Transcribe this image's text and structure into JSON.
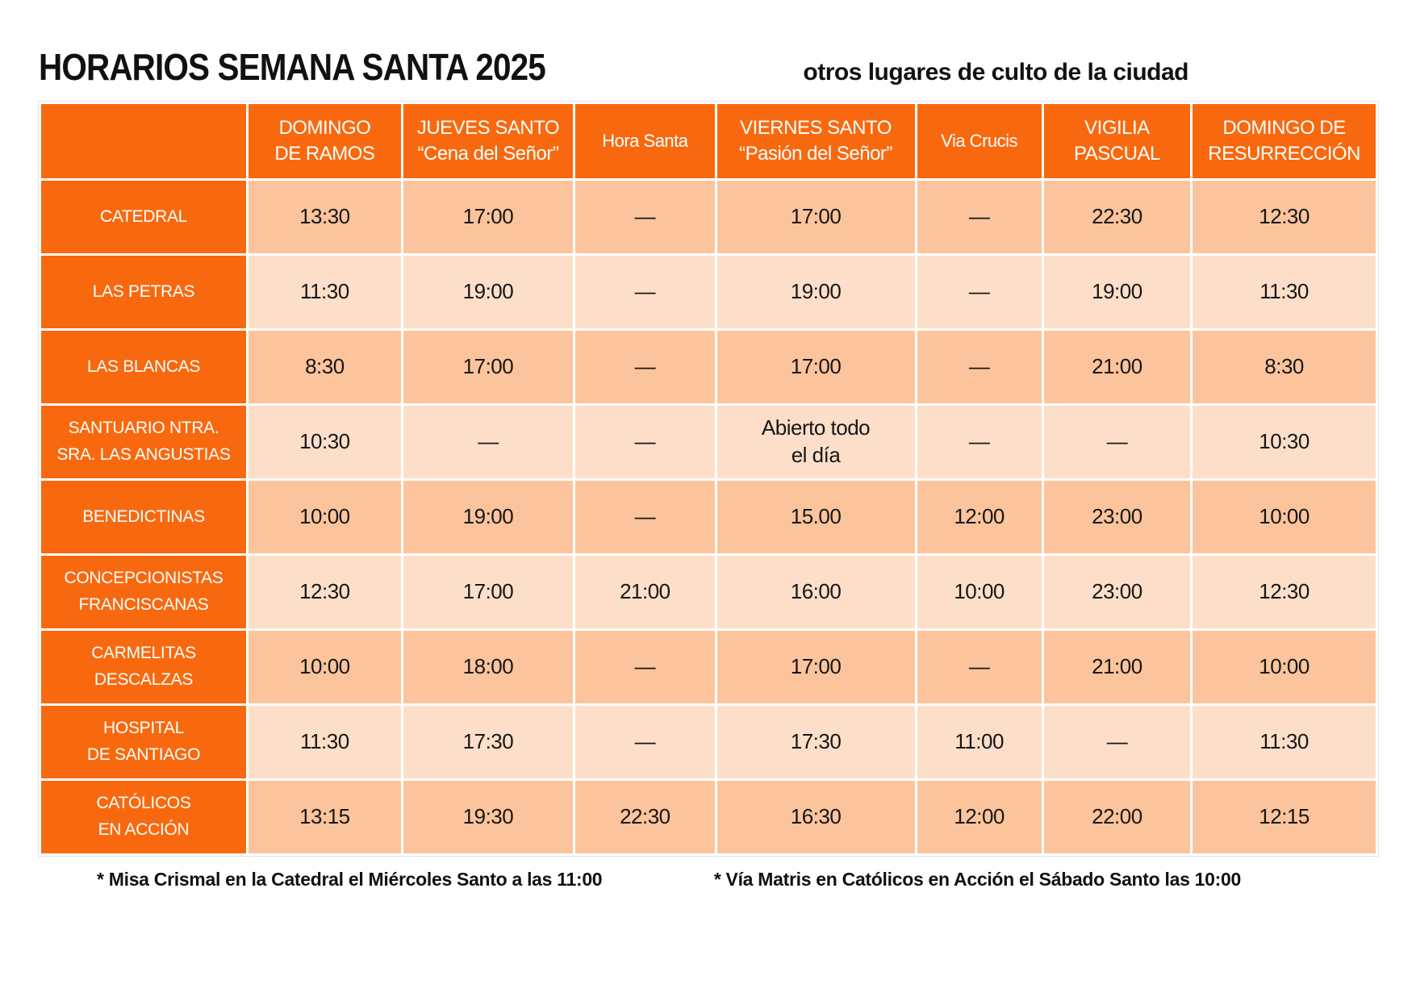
{
  "title": "HORARIOS SEMANA SANTA 2025",
  "subtitle": "otros lugares de culto de la ciudad",
  "colors": {
    "accent_orange": "#F8690F",
    "row_shade_dark": "#FBC49C",
    "row_shade_light": "#FDDFC9",
    "header_text": "#FFFFFF",
    "body_text": "#161616"
  },
  "table": {
    "columns": [
      {
        "line1": "",
        "line2": ""
      },
      {
        "line1": "DOMINGO",
        "line2": "DE RAMOS"
      },
      {
        "line1": "JUEVES SANTO",
        "line2": "“Cena del Señor”"
      },
      {
        "line1": "Hora Santa",
        "line2": ""
      },
      {
        "line1": "VIERNES SANTO",
        "line2": "“Pasión del Señor”"
      },
      {
        "line1": "Via Crucis",
        "line2": ""
      },
      {
        "line1": "VIGILIA",
        "line2": "PASCUAL"
      },
      {
        "line1": "DOMINGO DE",
        "line2": "RESURRECCIÓN"
      }
    ],
    "rows": [
      {
        "label_lines": [
          "CATEDRAL"
        ],
        "values": [
          "13:30",
          "17:00",
          "—",
          "17:00",
          "—",
          "22:30",
          "12:30"
        ]
      },
      {
        "label_lines": [
          "LAS PETRAS"
        ],
        "values": [
          "11:30",
          "19:00",
          "—",
          "19:00",
          "—",
          "19:00",
          "11:30"
        ]
      },
      {
        "label_lines": [
          "LAS BLANCAS"
        ],
        "values": [
          "8:30",
          "17:00",
          "—",
          "17:00",
          "—",
          "21:00",
          "8:30"
        ]
      },
      {
        "label_lines": [
          "SANTUARIO NTRA.",
          "SRA. LAS ANGUSTIAS"
        ],
        "values": [
          "10:30",
          "—",
          "—",
          "Abierto todo\nel día",
          "—",
          "—",
          "10:30"
        ]
      },
      {
        "label_lines": [
          "BENEDICTINAS"
        ],
        "values": [
          "10:00",
          "19:00",
          "—",
          "15.00",
          "12:00",
          "23:00",
          "10:00"
        ]
      },
      {
        "label_lines": [
          "CONCEPCIONISTAS",
          "FRANCISCANAS"
        ],
        "values": [
          "12:30",
          "17:00",
          "21:00",
          "16:00",
          "10:00",
          "23:00",
          "12:30"
        ]
      },
      {
        "label_lines": [
          "CARMELITAS",
          "DESCALZAS"
        ],
        "values": [
          "10:00",
          "18:00",
          "—",
          "17:00",
          "—",
          "21:00",
          "10:00"
        ]
      },
      {
        "label_lines": [
          "HOSPITAL",
          "DE SANTIAGO"
        ],
        "values": [
          "11:30",
          "17:30",
          "—",
          "17:30",
          "11:00",
          "—",
          "11:30"
        ]
      },
      {
        "label_lines": [
          "CATÓLICOS",
          "EN ACCIÓN"
        ],
        "values": [
          "13:15",
          "19:30",
          "22:30",
          "16:30",
          "12:00",
          "22:00",
          "12:15"
        ]
      }
    ]
  },
  "footnotes": {
    "left": "* Misa Crismal en la Catedral el Miércoles Santo a las 11:00",
    "right": "* Vía Matris en Católicos en Acción el Sábado Santo las 10:00"
  }
}
